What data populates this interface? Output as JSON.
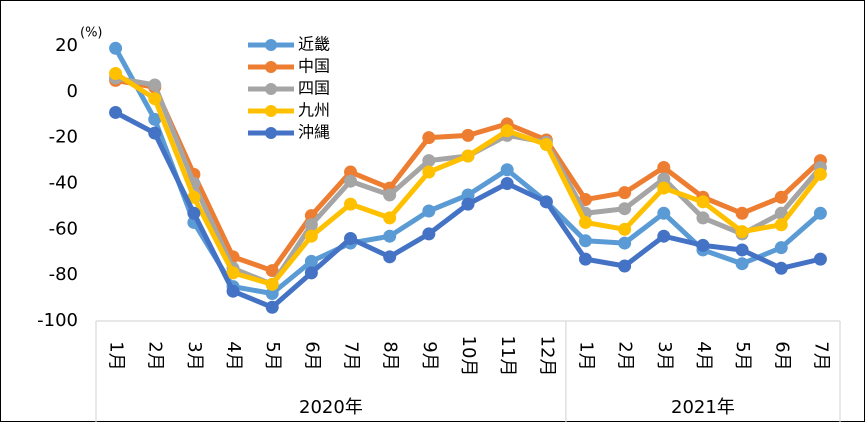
{
  "chart_data": {
    "type": "line",
    "y_unit": "(%)",
    "categories": [
      "1月",
      "2月",
      "3月",
      "4月",
      "5月",
      "6月",
      "7月",
      "8月",
      "9月",
      "10月",
      "11月",
      "12月",
      "1月",
      "2月",
      "3月",
      "4月",
      "5月",
      "6月",
      "7月"
    ],
    "groups": [
      {
        "label": "2020年",
        "count": 12
      },
      {
        "label": "2021年",
        "count": 7
      }
    ],
    "series": [
      {
        "name": "近畿",
        "color": "#5b9bd5",
        "values": [
          19,
          -12,
          -57,
          -85,
          -88,
          -74,
          -66,
          -63,
          -52,
          -45,
          -34,
          -48,
          -65,
          -66,
          -53,
          -69,
          -75,
          -68,
          -53
        ]
      },
      {
        "name": "中国",
        "color": "#ed7d31",
        "values": [
          5,
          2,
          -36,
          -72,
          -78,
          -54,
          -35,
          -42,
          -20,
          -19,
          -14,
          -21,
          -47,
          -44,
          -33,
          -46,
          -53,
          -46,
          -30
        ]
      },
      {
        "name": "四国",
        "color": "#a5a5a5",
        "values": [
          6,
          3,
          -40,
          -77,
          -84,
          -58,
          -39,
          -45,
          -30,
          -28,
          -19,
          -22,
          -53,
          -51,
          -38,
          -55,
          -62,
          -53,
          -33
        ]
      },
      {
        "name": "九州",
        "color": "#ffc000",
        "values": [
          8,
          -3,
          -46,
          -79,
          -84,
          -63,
          -49,
          -55,
          -35,
          -28,
          -17,
          -23,
          -57,
          -60,
          -42,
          -48,
          -61,
          -58,
          -36
        ]
      },
      {
        "name": "沖縄",
        "color": "#4472c4",
        "values": [
          -9,
          -18,
          -53,
          -87,
          -94,
          -79,
          -64,
          -72,
          -62,
          -49,
          -40,
          -48,
          -73,
          -76,
          -63,
          -67,
          -69,
          -77,
          -73
        ]
      }
    ],
    "ylim": [
      -100,
      20
    ],
    "yticks": [
      -100,
      -80,
      -60,
      -40,
      -20,
      0,
      20
    ],
    "grid": false,
    "legend": "upper left"
  }
}
